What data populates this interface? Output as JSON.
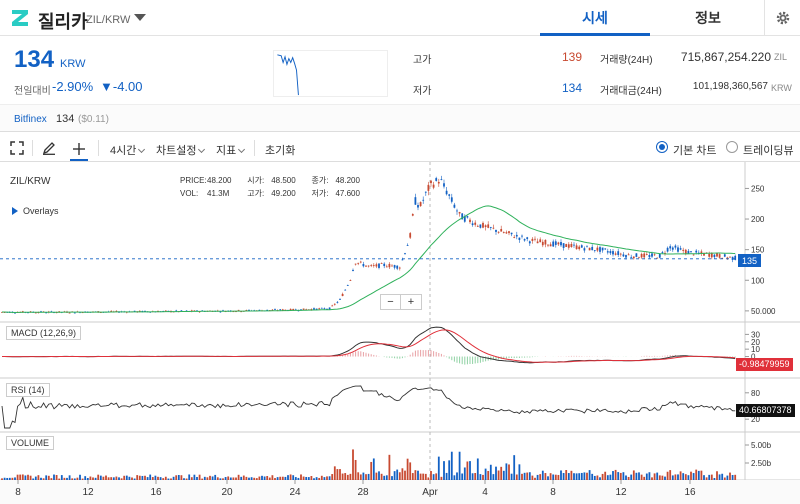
{
  "header": {
    "coin_name": "질리카",
    "pair": "ZIL/KRW",
    "tabs": [
      {
        "label": "시세",
        "active": true
      },
      {
        "label": "정보",
        "active": false
      }
    ]
  },
  "ticker": {
    "price": "134",
    "unit": "KRW",
    "change_label": "전일대비",
    "change_pct": "-2.90%",
    "change_amt": "▼-4.00",
    "high_label": "고가",
    "high": "139",
    "low_label": "저가",
    "low": "134",
    "volume_label": "거래량(24H)",
    "volume": "715,867,254.220",
    "volume_unit": "ZIL",
    "value_label": "거래대금(24H)",
    "value": "101,198,360,567",
    "value_unit": "KRW"
  },
  "exchange": {
    "name": "Bitfinex",
    "price": "134",
    "usd": "($0.11)"
  },
  "toolbar": {
    "interval": "4시간",
    "chart_settings": "차트설정",
    "indicators": "지표",
    "reset": "초기화",
    "basic_chart": "기본 차트",
    "tradingview": "트레이딩뷰"
  },
  "chart": {
    "symbol": "ZIL/KRW",
    "overlays": "Overlays",
    "ohlc": {
      "price_label": "PRICE:",
      "price": "48.200",
      "open_label": "시가:",
      "open": "48.500",
      "close_label": "종가:",
      "close": "48.200",
      "vol_label": "VOL:",
      "vol": "41.3M",
      "high_label": "고가:",
      "high": "49.200",
      "low_label": "저가:",
      "low": "47.600"
    },
    "price_tag": "135",
    "macd_label": "MACD (12,26,9)",
    "macd_tag": "-0.98479959",
    "rsi_label": "RSI (14)",
    "rsi_tag": "40.66807378",
    "volume_label": "VOLUME",
    "zoom_minus": "−",
    "zoom_plus": "+",
    "price_ticks": [
      "250",
      "200",
      "150",
      "100",
      "50.000"
    ],
    "macd_ticks": [
      "30",
      "20",
      "10",
      "0"
    ],
    "rsi_ticks": [
      "80",
      "20"
    ],
    "volume_ticks": [
      "5.00b",
      "2.50b"
    ],
    "x_ticks": [
      "8",
      "12",
      "16",
      "20",
      "24",
      "28",
      "Apr",
      "4",
      "8",
      "12",
      "16"
    ],
    "colors": {
      "up": "#c84a31",
      "down": "#1261c4",
      "ma": "#2fb15b",
      "macd": "#333333",
      "signal": "#e0303a"
    }
  },
  "chart_data": {
    "type": "candlestick",
    "x_ticks": [
      "8",
      "12",
      "16",
      "20",
      "24",
      "28",
      "Apr",
      "4",
      "8",
      "12",
      "16"
    ],
    "price_approx": [
      {
        "x": "8",
        "close": 48
      },
      {
        "x": "24",
        "close": 51
      },
      {
        "x": "28",
        "close": 130
      },
      {
        "x": "Apr",
        "close": 250
      },
      {
        "x": "4",
        "close": 190
      },
      {
        "x": "8",
        "close": 150
      },
      {
        "x": "12",
        "close": 140
      },
      {
        "x": "16",
        "close": 150
      },
      {
        "x": "last",
        "close": 135
      }
    ]
  }
}
